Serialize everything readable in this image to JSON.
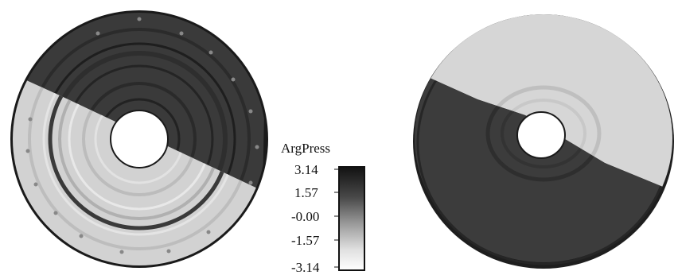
{
  "colorbar": {
    "title": "ArgPress",
    "ticks": [
      "3.14",
      "1.57",
      "-0.00",
      "-1.57",
      "-3.14"
    ],
    "range": [
      -3.14,
      3.14
    ],
    "gradient": [
      "#111111",
      "#555555",
      "#9a9a9a",
      "#e6e6e6",
      "#ffffff"
    ]
  },
  "colors": {
    "dark_region": "#3a3a3a",
    "light_region": "#cfcfcf",
    "edge": "#1a1a1a"
  },
  "views": [
    {
      "id": "left",
      "description_shown": ""
    },
    {
      "id": "right",
      "description_shown": ""
    }
  ]
}
